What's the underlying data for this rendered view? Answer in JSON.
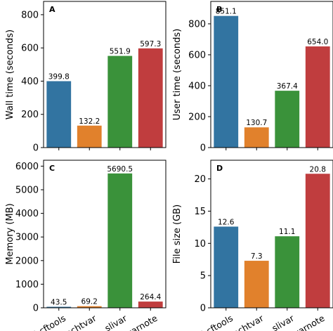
{
  "chart_data": [
    {
      "type": "bar",
      "panel": "A",
      "categories": [
        "bcftools",
        "echtvar",
        "slivar",
        "varnote"
      ],
      "values": [
        399.8,
        132.2,
        551.9,
        597.3
      ],
      "value_labels": [
        "399.8",
        "132.2",
        "551.9",
        "597.3"
      ],
      "ylabel": "Wall time (seconds)",
      "ylim": [
        0,
        880
      ],
      "yticks": [
        0,
        200,
        400,
        600,
        800
      ],
      "show_xticklabels": false
    },
    {
      "type": "bar",
      "panel": "B",
      "categories": [
        "bcftools",
        "echtvar",
        "slivar",
        "varnote"
      ],
      "values": [
        851.1,
        130.7,
        367.4,
        654.0
      ],
      "value_labels": [
        "851.1",
        "130.7",
        "367.4",
        "654.0"
      ],
      "ylabel": "User time (seconds)",
      "ylim": [
        0,
        945
      ],
      "yticks": [
        0,
        200,
        400,
        600,
        800
      ],
      "show_xticklabels": false
    },
    {
      "type": "bar",
      "panel": "C",
      "categories": [
        "bcftools",
        "echtvar",
        "slivar",
        "varnote"
      ],
      "values": [
        43.5,
        69.2,
        5690.5,
        264.4
      ],
      "value_labels": [
        "43.5",
        "69.2",
        "5690.5",
        "264.4"
      ],
      "ylabel": "Memory (MB)",
      "ylim": [
        0,
        6250
      ],
      "yticks": [
        0,
        1000,
        2000,
        3000,
        4000,
        5000,
        6000
      ],
      "show_xticklabels": true
    },
    {
      "type": "bar",
      "panel": "D",
      "categories": [
        "bcftools",
        "echtvar",
        "slivar",
        "varnote"
      ],
      "values": [
        12.6,
        7.3,
        11.1,
        20.8
      ],
      "value_labels": [
        "12.6",
        "7.3",
        "11.1",
        "20.8"
      ],
      "ylabel": "File size (GB)",
      "ylim": [
        0,
        22.9
      ],
      "yticks": [
        0,
        5,
        10,
        15,
        20
      ],
      "show_xticklabels": true
    }
  ],
  "colors": [
    "#3274a1",
    "#e1812c",
    "#3a923a",
    "#c03d3e"
  ]
}
